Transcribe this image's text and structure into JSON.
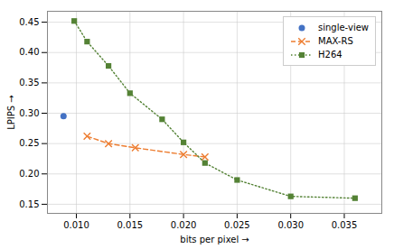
{
  "chart_data": {
    "type": "line",
    "series": [
      {
        "name": "single-view",
        "type": "scatter",
        "color": "#4472c4",
        "marker": "circle",
        "line_style": "none",
        "x": [
          0.0088
        ],
        "values": [
          0.295
        ]
      },
      {
        "name": "MAX-RS",
        "type": "line",
        "color": "#ed7d31",
        "marker": "x",
        "line_style": "dashed",
        "x": [
          0.011,
          0.013,
          0.0155,
          0.02,
          0.022
        ],
        "values": [
          0.262,
          0.25,
          0.243,
          0.232,
          0.228
        ]
      },
      {
        "name": "H264",
        "type": "line",
        "color": "#548235",
        "marker": "square",
        "line_style": "dotted",
        "x": [
          0.0098,
          0.011,
          0.013,
          0.015,
          0.018,
          0.02,
          0.022,
          0.025,
          0.03,
          0.036
        ],
        "values": [
          0.452,
          0.418,
          0.378,
          0.333,
          0.29,
          0.252,
          0.218,
          0.19,
          0.163,
          0.16
        ]
      }
    ],
    "xlabel": "bits per pixel",
    "ylabel": "LPIPS",
    "xlim": [
      0.0073,
      0.0385
    ],
    "ylim": [
      0.135,
      0.468
    ],
    "xticks": [
      {
        "value": 0.01,
        "label": "0.010"
      },
      0.015,
      {
        "value": 0.02,
        "label": "0.020"
      },
      0.025,
      {
        "value": 0.03,
        "label": "0.030"
      },
      0.035
    ],
    "yticks": [
      0.15,
      {
        "value": 0.2,
        "label": "0.20"
      },
      0.25,
      {
        "value": 0.3,
        "label": "0.30"
      },
      0.35,
      {
        "value": 0.4,
        "label": "0.40"
      },
      0.45
    ],
    "grid": true,
    "legend": "upper right"
  }
}
